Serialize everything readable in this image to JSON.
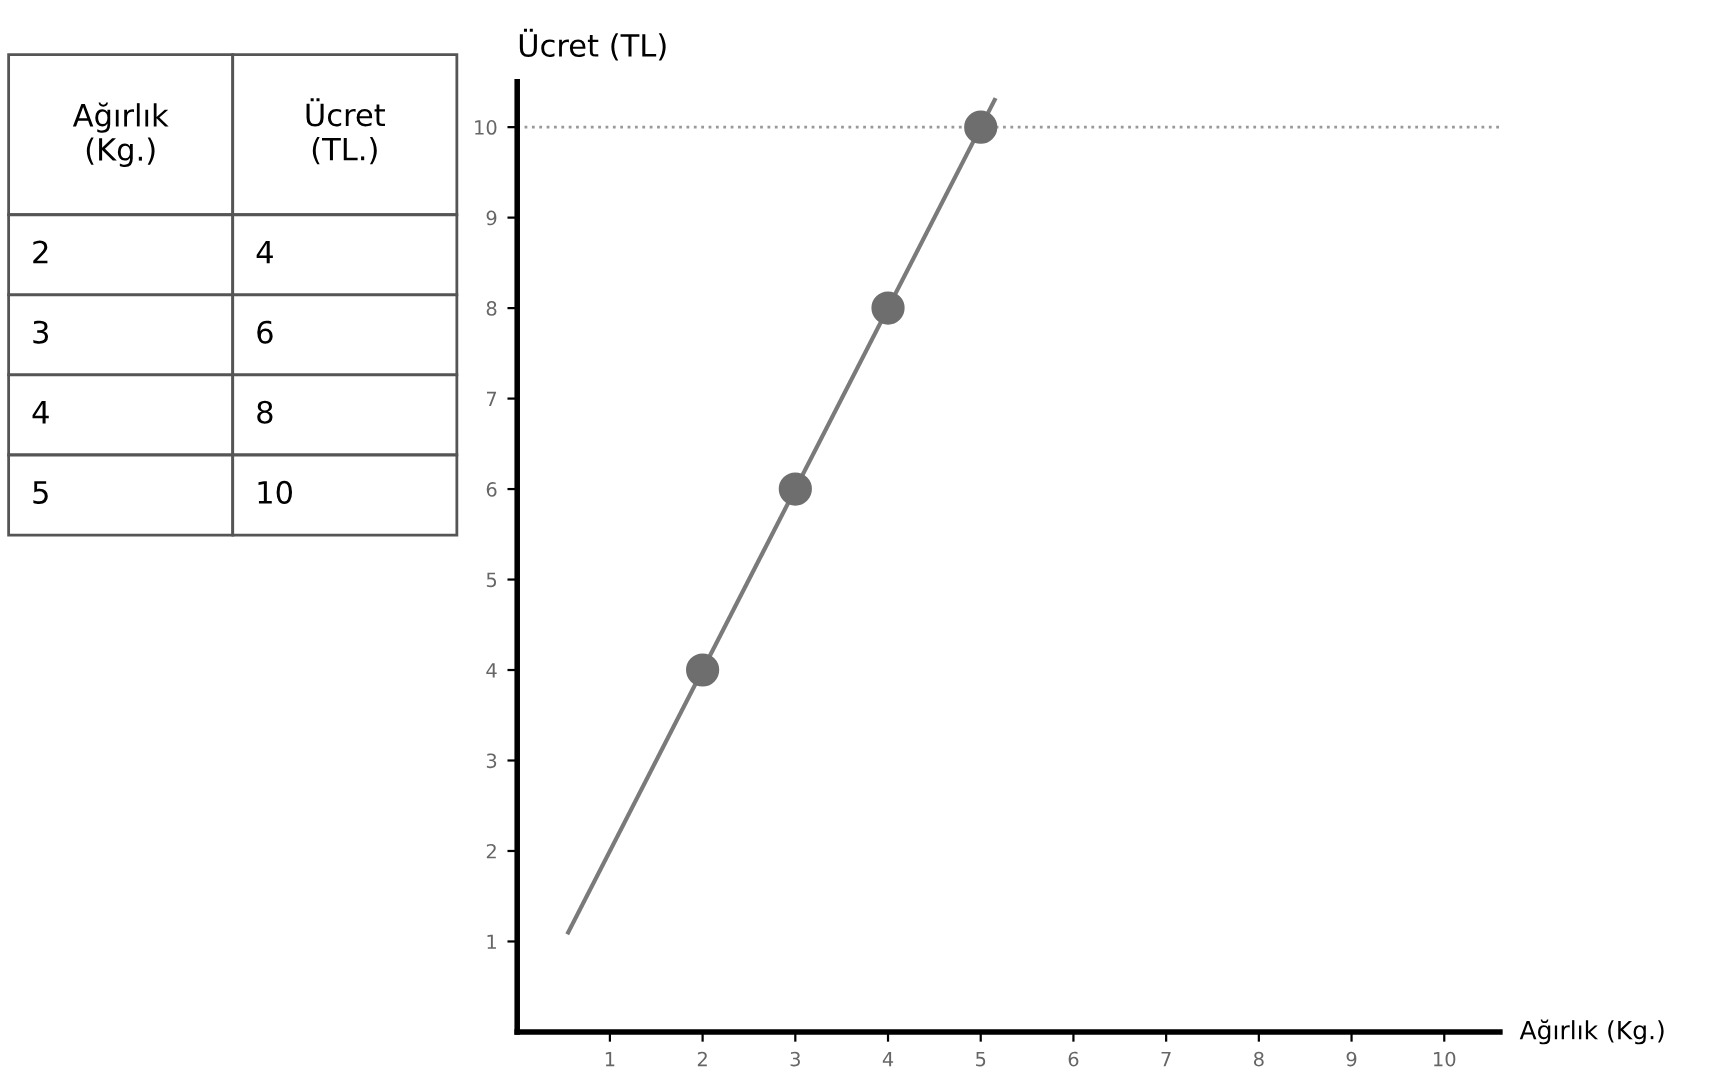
{
  "chart_data": {
    "type": "scatter",
    "ylabel": "Ücret (TL)",
    "xlabel": "Ağırlık (Kg.)",
    "annotations": [
      "Ağırlık\n(Kg.)",
      "Ücret\n(TL.)",
      "2",
      "4",
      "3",
      "6",
      "4",
      "8",
      "5",
      "10"
    ],
    "series": [
      {
        "color": "#6e6e6e",
        "x": [
          2,
          3,
          4,
          5
        ],
        "values": [
          4,
          6,
          8,
          10
        ],
        "marker": "circle"
      },
      {
        "type": "line",
        "color": "#7a7a7a",
        "x": [
          0.55,
          5.15
        ],
        "values": [
          1.1,
          10.3
        ],
        "marker": "none"
      }
    ],
    "xlim": [
      0,
      10.6
    ],
    "ylim": [
      0,
      10.5
    ],
    "xticks": [
      1,
      2,
      3,
      4,
      5,
      6,
      7,
      8,
      9,
      10
    ],
    "yticks": [
      1,
      2,
      3,
      4,
      5,
      6,
      7,
      8,
      9,
      10
    ],
    "ref_lines": [
      {
        "axis": "y",
        "value": 10,
        "color": "#999999",
        "line_style": "dotted"
      }
    ],
    "grid": false,
    "legend": false
  }
}
